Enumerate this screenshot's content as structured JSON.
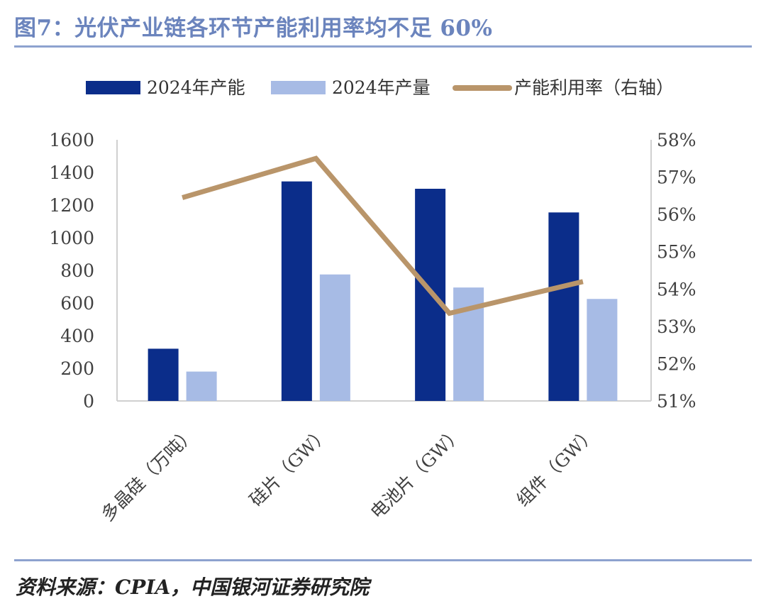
{
  "figure": {
    "title": "图7：光伏产业链各环节产能利用率均不足 60%",
    "source": "资料来源：CPIA，中国银河证券研究院"
  },
  "colors": {
    "capacity": "#0b2d8a",
    "output": "#a7bbe5",
    "utilization": "#b9956a",
    "axis": "#d0d0d0",
    "title": "#6b84bd"
  },
  "chart_data": {
    "type": "bar+line",
    "categories": [
      "多晶硅（万吨）",
      "硅片（GW）",
      "电池片（GW）",
      "组件（GW）"
    ],
    "series": [
      {
        "name": "2024年产能",
        "type": "bar",
        "axis": "left",
        "values": [
          320,
          1345,
          1300,
          1155
        ]
      },
      {
        "name": "2024年产量",
        "type": "bar",
        "axis": "left",
        "values": [
          180,
          775,
          695,
          625
        ]
      },
      {
        "name": "产能利用率（右轴）",
        "type": "line",
        "axis": "right",
        "values": [
          56.45,
          57.5,
          53.35,
          54.2
        ]
      }
    ],
    "left_axis": {
      "min": 0,
      "max": 1600,
      "ticks": [
        "0",
        "200",
        "400",
        "600",
        "800",
        "1000",
        "1200",
        "1400",
        "1600"
      ]
    },
    "right_axis": {
      "min": 51,
      "max": 58,
      "ticks": [
        "51%",
        "52%",
        "53%",
        "54%",
        "55%",
        "56%",
        "57%",
        "58%"
      ]
    },
    "legend_position": "top"
  }
}
